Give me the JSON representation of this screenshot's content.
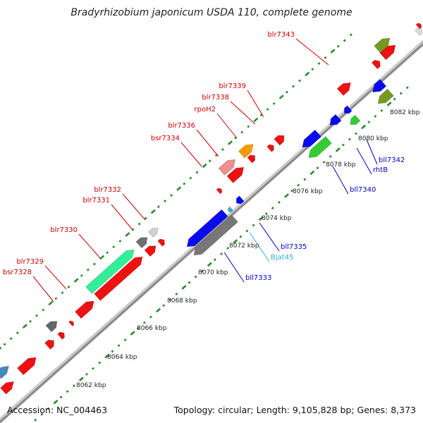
{
  "title": "Bradyrhizobium japonicum USDA 110, complete genome",
  "footer": {
    "accession": "Accession: NC_004463",
    "summary": "Topology: circular; Length: 9,105,828 bp; Genes: 8,373"
  },
  "colors": {
    "forward_label": "#cc0000",
    "reverse_label": "#0000cc",
    "rna_label": "#33aadd",
    "backbone": "#9a9a9a",
    "tick": "#2a8a2a"
  },
  "kbp_labels": [
    "8062 kbp",
    "8064 kbp",
    "8066 kbp",
    "8068 kbp",
    "8070 kbp",
    "8072 kbp",
    "8074 kbp",
    "8076 kbp",
    "8078 kbp",
    "8080 kbp",
    "8082 kbp"
  ],
  "forward_gene_labels": [
    "blr7343",
    "blr7339",
    "blr7338",
    "rpoH2",
    "blr7336",
    "bsr7334",
    "blr7332",
    "blr7331",
    "blr7330",
    "blr7329",
    "bsr7328"
  ],
  "reverse_gene_labels": [
    "bll7342",
    "rhtB",
    "bll7340",
    "bll7335",
    "Bjat45",
    "bll7333"
  ]
}
